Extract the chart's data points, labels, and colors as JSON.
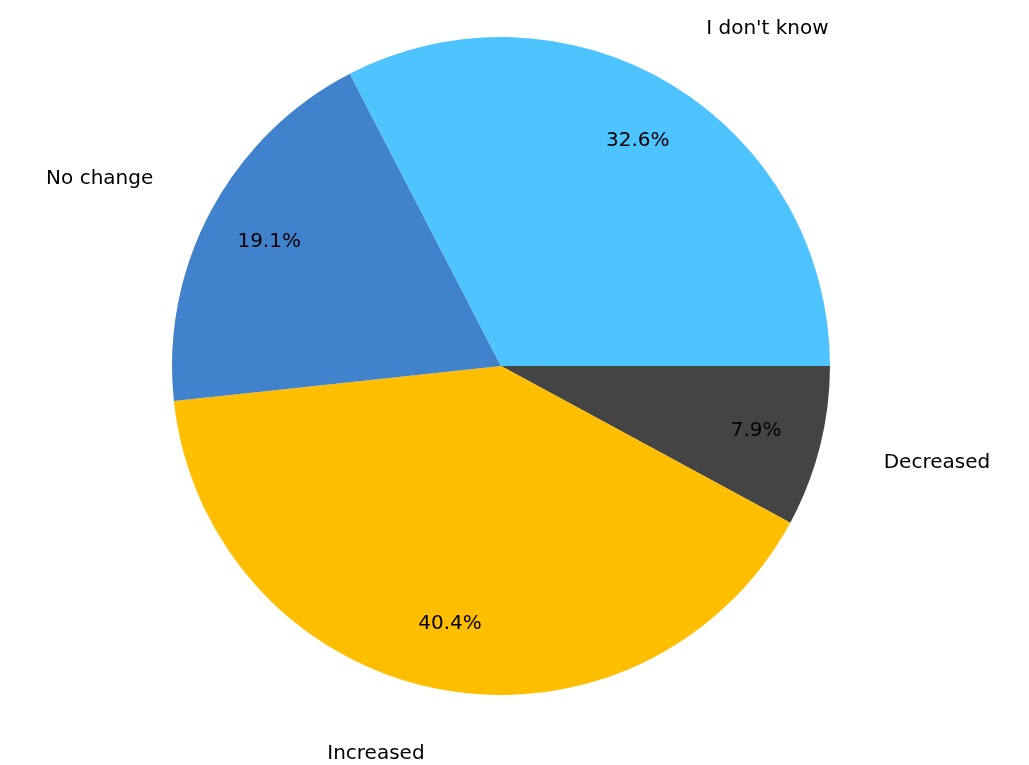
{
  "chart_data": {
    "type": "pie",
    "categories": [
      "I don't know",
      "No change",
      "Increased",
      "Decreased"
    ],
    "values": [
      32.6,
      19.1,
      40.4,
      7.9
    ],
    "colors": [
      "#4dc3ff",
      "#4182cd",
      "#ffbe00",
      "#444444"
    ],
    "value_labels": [
      "32.6%",
      "19.1%",
      "40.4%",
      "7.9%"
    ]
  }
}
